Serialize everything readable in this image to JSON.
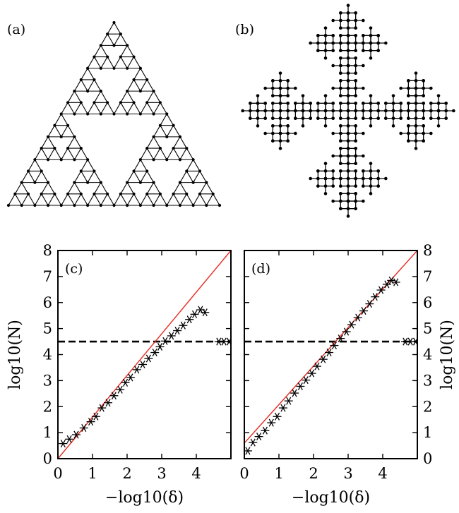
{
  "figure": {
    "panel_labels": [
      "(a)",
      "(b)",
      "(c)",
      "(d)"
    ],
    "line_color": "#000000",
    "fit_color": "#e8281e"
  },
  "diagrams": [
    {
      "panel": "(a)",
      "kind": "sierpinski-gasket-graph",
      "level": 4
    },
    {
      "panel": "(b)",
      "kind": "vicsek-cross-fractal",
      "level": 3
    }
  ],
  "chart_data": [
    {
      "panel": "(c)",
      "type": "scatter",
      "xlabel": "−log10(δ)",
      "ylabel": "log10(N)",
      "xlim": [
        0,
        5
      ],
      "ylim": [
        0,
        8
      ],
      "xticks": [
        0,
        1,
        2,
        3,
        4
      ],
      "yticks": [
        0,
        1,
        2,
        3,
        4,
        5,
        6,
        7,
        8
      ],
      "ylabel_side": "left",
      "marker": "asterisk",
      "points": [
        [
          0.15,
          0.58
        ],
        [
          0.33,
          0.75
        ],
        [
          0.53,
          0.92
        ],
        [
          0.75,
          1.18
        ],
        [
          0.95,
          1.42
        ],
        [
          1.1,
          1.62
        ],
        [
          1.27,
          1.95
        ],
        [
          1.45,
          2.15
        ],
        [
          1.62,
          2.42
        ],
        [
          1.8,
          2.65
        ],
        [
          1.95,
          2.92
        ],
        [
          2.1,
          3.12
        ],
        [
          2.28,
          3.42
        ],
        [
          2.45,
          3.62
        ],
        [
          2.62,
          3.85
        ],
        [
          2.8,
          4.08
        ],
        [
          2.95,
          4.3
        ],
        [
          3.1,
          4.52
        ],
        [
          3.28,
          4.72
        ],
        [
          3.45,
          4.92
        ],
        [
          3.62,
          5.12
        ],
        [
          3.8,
          5.35
        ],
        [
          3.95,
          5.55
        ],
        [
          4.12,
          5.72
        ],
        [
          4.25,
          5.62
        ]
      ],
      "saturated_points": [
        [
          4.65,
          4.5
        ],
        [
          4.8,
          4.5
        ],
        [
          4.95,
          4.5
        ]
      ],
      "fit_line": [
        [
          0,
          0.0
        ],
        [
          5,
          8.0
        ]
      ],
      "reference_line": {
        "y": 4.5,
        "style": "dashed"
      }
    },
    {
      "panel": "(d)",
      "type": "scatter",
      "xlabel": "−log10(δ)",
      "ylabel": "log10(N)",
      "xlim": [
        0,
        5
      ],
      "ylim": [
        0,
        8
      ],
      "xticks": [
        0,
        1,
        2,
        3,
        4
      ],
      "yticks": [
        0,
        1,
        2,
        3,
        4,
        5,
        6,
        7,
        8
      ],
      "ylabel_side": "right",
      "marker": "asterisk",
      "points": [
        [
          0.1,
          0.3
        ],
        [
          0.25,
          0.62
        ],
        [
          0.42,
          0.85
        ],
        [
          0.6,
          1.08
        ],
        [
          0.78,
          1.38
        ],
        [
          0.95,
          1.62
        ],
        [
          1.12,
          1.95
        ],
        [
          1.28,
          2.22
        ],
        [
          1.45,
          2.52
        ],
        [
          1.62,
          2.78
        ],
        [
          1.78,
          3.02
        ],
        [
          1.95,
          3.28
        ],
        [
          2.1,
          3.55
        ],
        [
          2.28,
          3.82
        ],
        [
          2.45,
          4.08
        ],
        [
          2.6,
          4.35
        ],
        [
          2.78,
          4.62
        ],
        [
          2.95,
          4.88
        ],
        [
          3.1,
          5.15
        ],
        [
          3.28,
          5.42
        ],
        [
          3.45,
          5.68
        ],
        [
          3.62,
          5.95
        ],
        [
          3.78,
          6.22
        ],
        [
          3.95,
          6.48
        ],
        [
          4.12,
          6.7
        ],
        [
          4.25,
          6.85
        ],
        [
          4.38,
          6.78
        ]
      ],
      "saturated_points": [
        [
          4.65,
          4.5
        ],
        [
          4.8,
          4.5
        ],
        [
          4.95,
          4.5
        ]
      ],
      "fit_line": [
        [
          0,
          0.6
        ],
        [
          5,
          8.0
        ]
      ],
      "reference_line": {
        "y": 4.5,
        "style": "dashed"
      }
    }
  ]
}
